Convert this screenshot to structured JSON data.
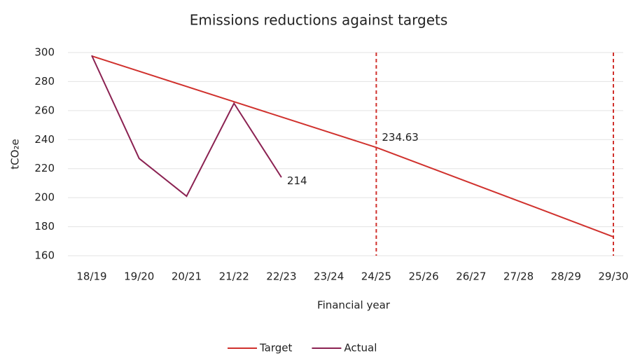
{
  "chart_data": {
    "type": "line",
    "title": "Emissions reductions against targets",
    "x_label": "Financial year",
    "y_label": "tCO₂e",
    "categories": [
      "18/19",
      "19/20",
      "20/21",
      "21/22",
      "22/23",
      "23/24",
      "24/25",
      "25/26",
      "26/27",
      "27/28",
      "28/29",
      "29/30"
    ],
    "series": [
      {
        "name": "Target",
        "color": "#d0312d",
        "values": [
          297.6,
          287.1,
          276.6,
          266.1,
          255.6,
          245.1,
          234.63,
          222.3,
          210,
          197.7,
          185.4,
          173
        ],
        "value_labels": [
          null,
          null,
          null,
          null,
          null,
          null,
          "234.63",
          null,
          null,
          null,
          null,
          null
        ]
      },
      {
        "name": "Actual",
        "color": "#8b2252",
        "values": [
          298,
          227,
          201,
          265,
          214,
          null,
          null,
          null,
          null,
          null,
          null,
          null
        ],
        "value_labels": [
          null,
          null,
          null,
          null,
          "214",
          null,
          null,
          null,
          null,
          null,
          null,
          null
        ]
      }
    ],
    "vlines": [
      "24/25",
      "29/30"
    ],
    "vline_color": "#d0312d",
    "ylim": [
      160,
      300
    ],
    "yticks": [
      160,
      180,
      200,
      220,
      240,
      260,
      280,
      300
    ],
    "grid": true,
    "legend": "bottom"
  }
}
